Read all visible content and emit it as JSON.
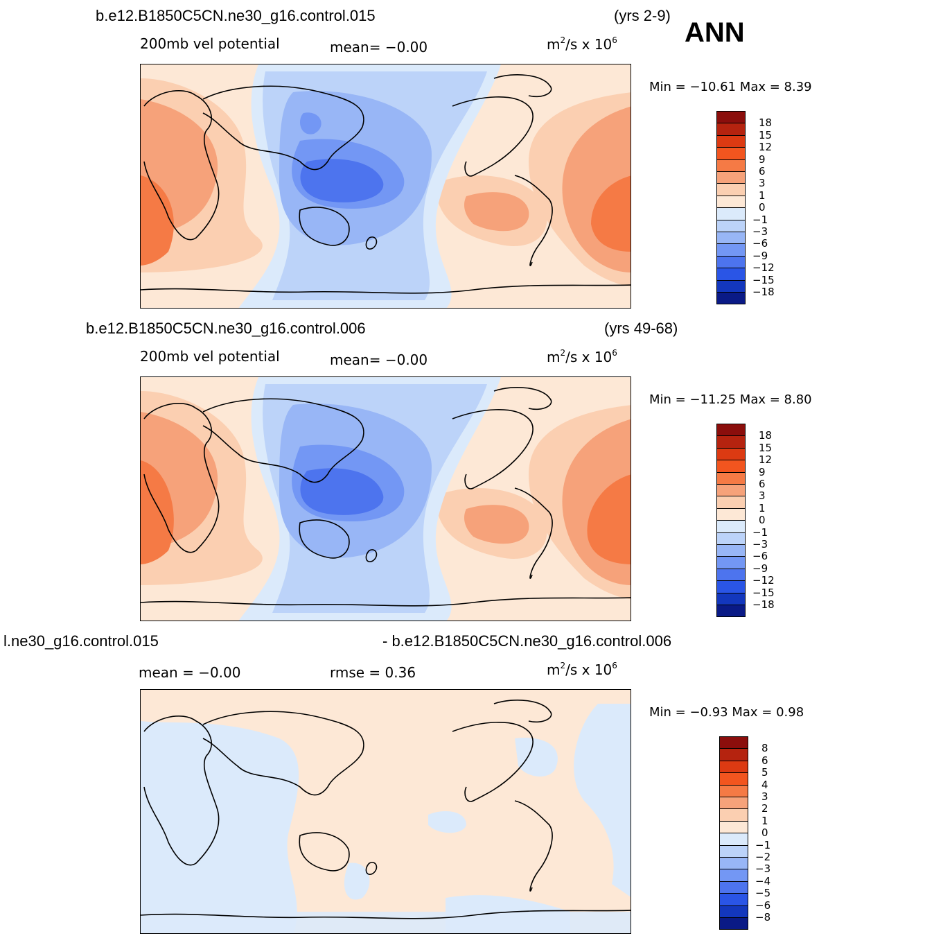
{
  "annotation": "ANN",
  "panels": [
    {
      "case_title": "b.e12.B1850C5CN.ne30_g16.control.015",
      "period": "(yrs 2-9)",
      "variable": "200mb  vel  potential",
      "stat_left": "mean=   −0.00",
      "stat_right": "",
      "units_base": "m",
      "units_exp": "2",
      "units_mid": "/s  x  10",
      "units_exp2": "6",
      "minmax": "Min  =  −10.61  Max  =      8.39",
      "legend_levels": [
        "18",
        "15",
        "12",
        "9",
        "6",
        "3",
        "1",
        "0",
        "−1",
        "−3",
        "−6",
        "−9",
        "−12",
        "−15",
        "−18"
      ]
    },
    {
      "case_title": "b.e12.B1850C5CN.ne30_g16.control.006",
      "period": "(yrs 49-68)",
      "variable": "200mb  vel  potential",
      "stat_left": "mean=   −0.00",
      "stat_right": "",
      "units_base": "m",
      "units_exp": "2",
      "units_mid": "/s  x  10",
      "units_exp2": "6",
      "minmax": "Min  =  −11.25  Max  =      8.80",
      "legend_levels": [
        "18",
        "15",
        "12",
        "9",
        "6",
        "3",
        "1",
        "0",
        "−1",
        "−3",
        "−6",
        "−9",
        "−12",
        "−15",
        "−18"
      ]
    },
    {
      "case_title": "l.ne30_g16.control.015",
      "period": "- b.e12.B1850C5CN.ne30_g16.control.006",
      "variable": "",
      "stat_left": "mean  =    −0.00",
      "stat_right": "rmse  =     0.36",
      "units_base": "m",
      "units_exp": "2",
      "units_mid": "/s  x  10",
      "units_exp2": "6",
      "minmax": "Min  =    −0.93  Max  =      0.98",
      "legend_levels": [
        "8",
        "6",
        "5",
        "4",
        "3",
        "2",
        "1",
        "0",
        "−1",
        "−2",
        "−3",
        "−4",
        "−5",
        "−6",
        "−8"
      ]
    }
  ],
  "colors": {
    "palette16": [
      "#8b0e0c",
      "#b5230f",
      "#dc3a12",
      "#f2551f",
      "#f57a45",
      "#f6a27a",
      "#fbcfb1",
      "#fde8d6",
      "#dbeafb",
      "#bcd3f9",
      "#98b6f6",
      "#7397f4",
      "#4d74ee",
      "#2a55e6",
      "#1337bd",
      "#0a1a86"
    ],
    "diff_pos": "#fde8d6",
    "diff_neg": "#dbeafb",
    "coast": "#000000"
  }
}
